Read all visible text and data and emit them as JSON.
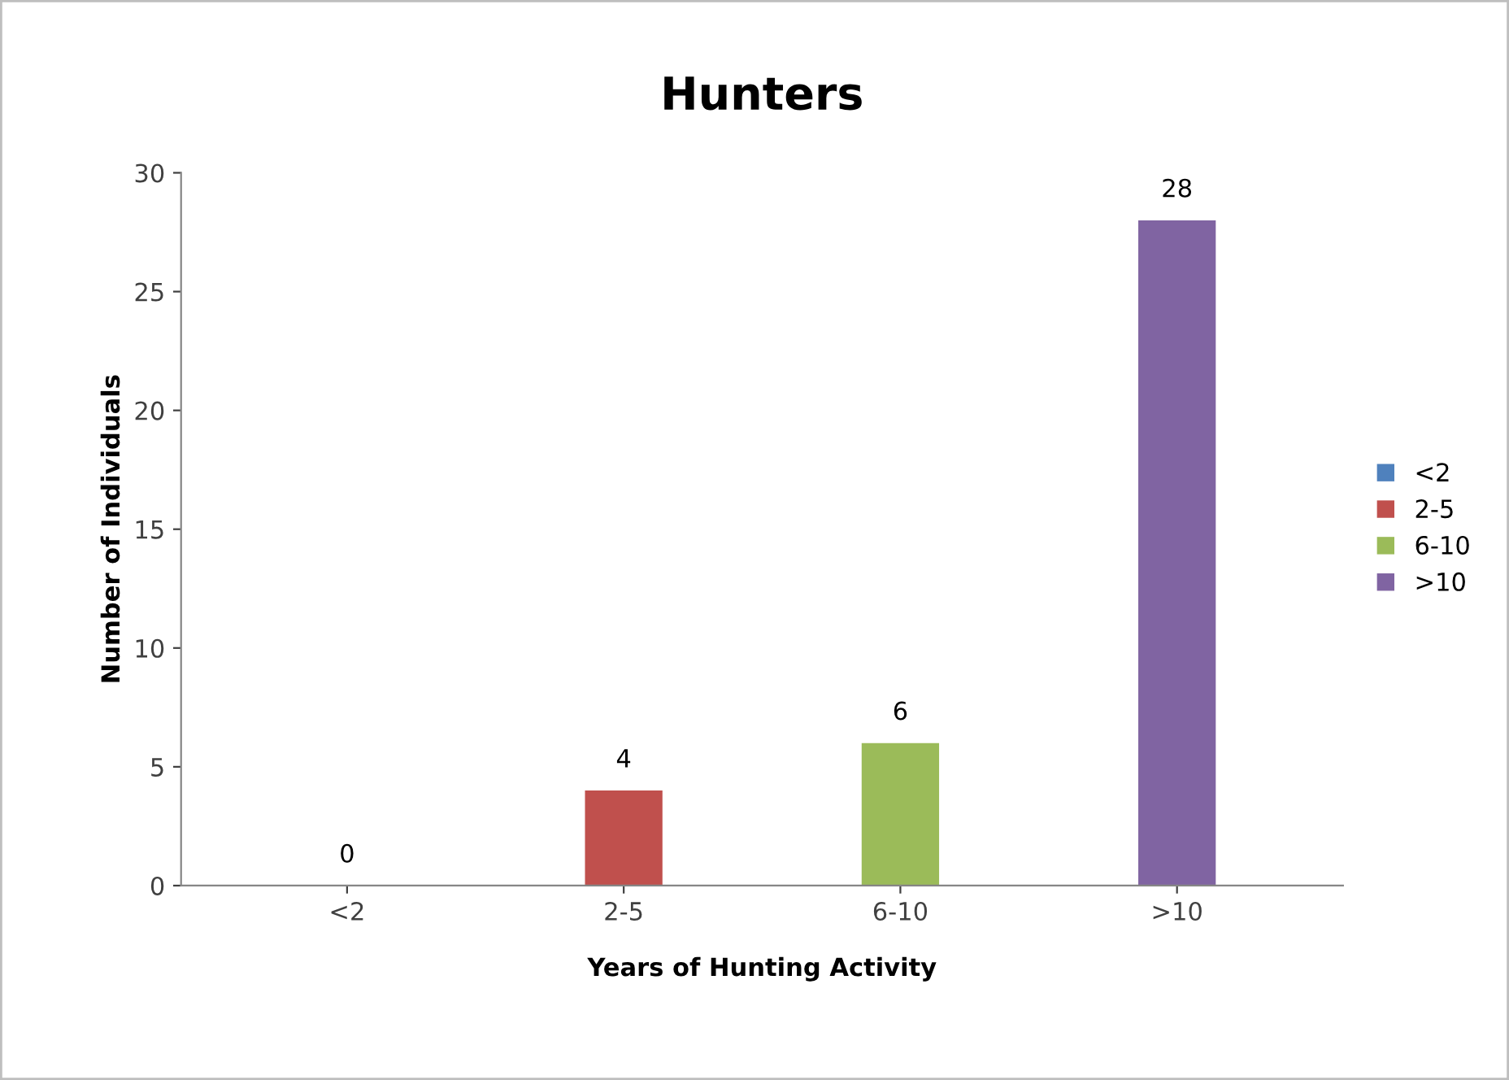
{
  "chart_data": {
    "type": "bar",
    "title": "Hunters",
    "xlabel": "Years of Hunting Activity",
    "ylabel": "Number of Individuals",
    "categories": [
      "<2",
      "2-5",
      "6-10",
      ">10"
    ],
    "series": [
      {
        "name": "<2",
        "color": "#4f81bd",
        "values": [
          0,
          null,
          null,
          null
        ]
      },
      {
        "name": "2-5",
        "color": "#c0504d",
        "values": [
          null,
          4,
          null,
          null
        ]
      },
      {
        "name": "6-10",
        "color": "#9bbb59",
        "values": [
          null,
          null,
          6,
          null
        ]
      },
      {
        "name": ">10",
        "color": "#8064a2",
        "values": [
          null,
          null,
          null,
          28
        ]
      }
    ],
    "ylim": [
      0,
      30
    ],
    "yticks": [
      0,
      5,
      10,
      15,
      20,
      25,
      30
    ],
    "data_labels": true,
    "legend": "right",
    "grid": false
  }
}
